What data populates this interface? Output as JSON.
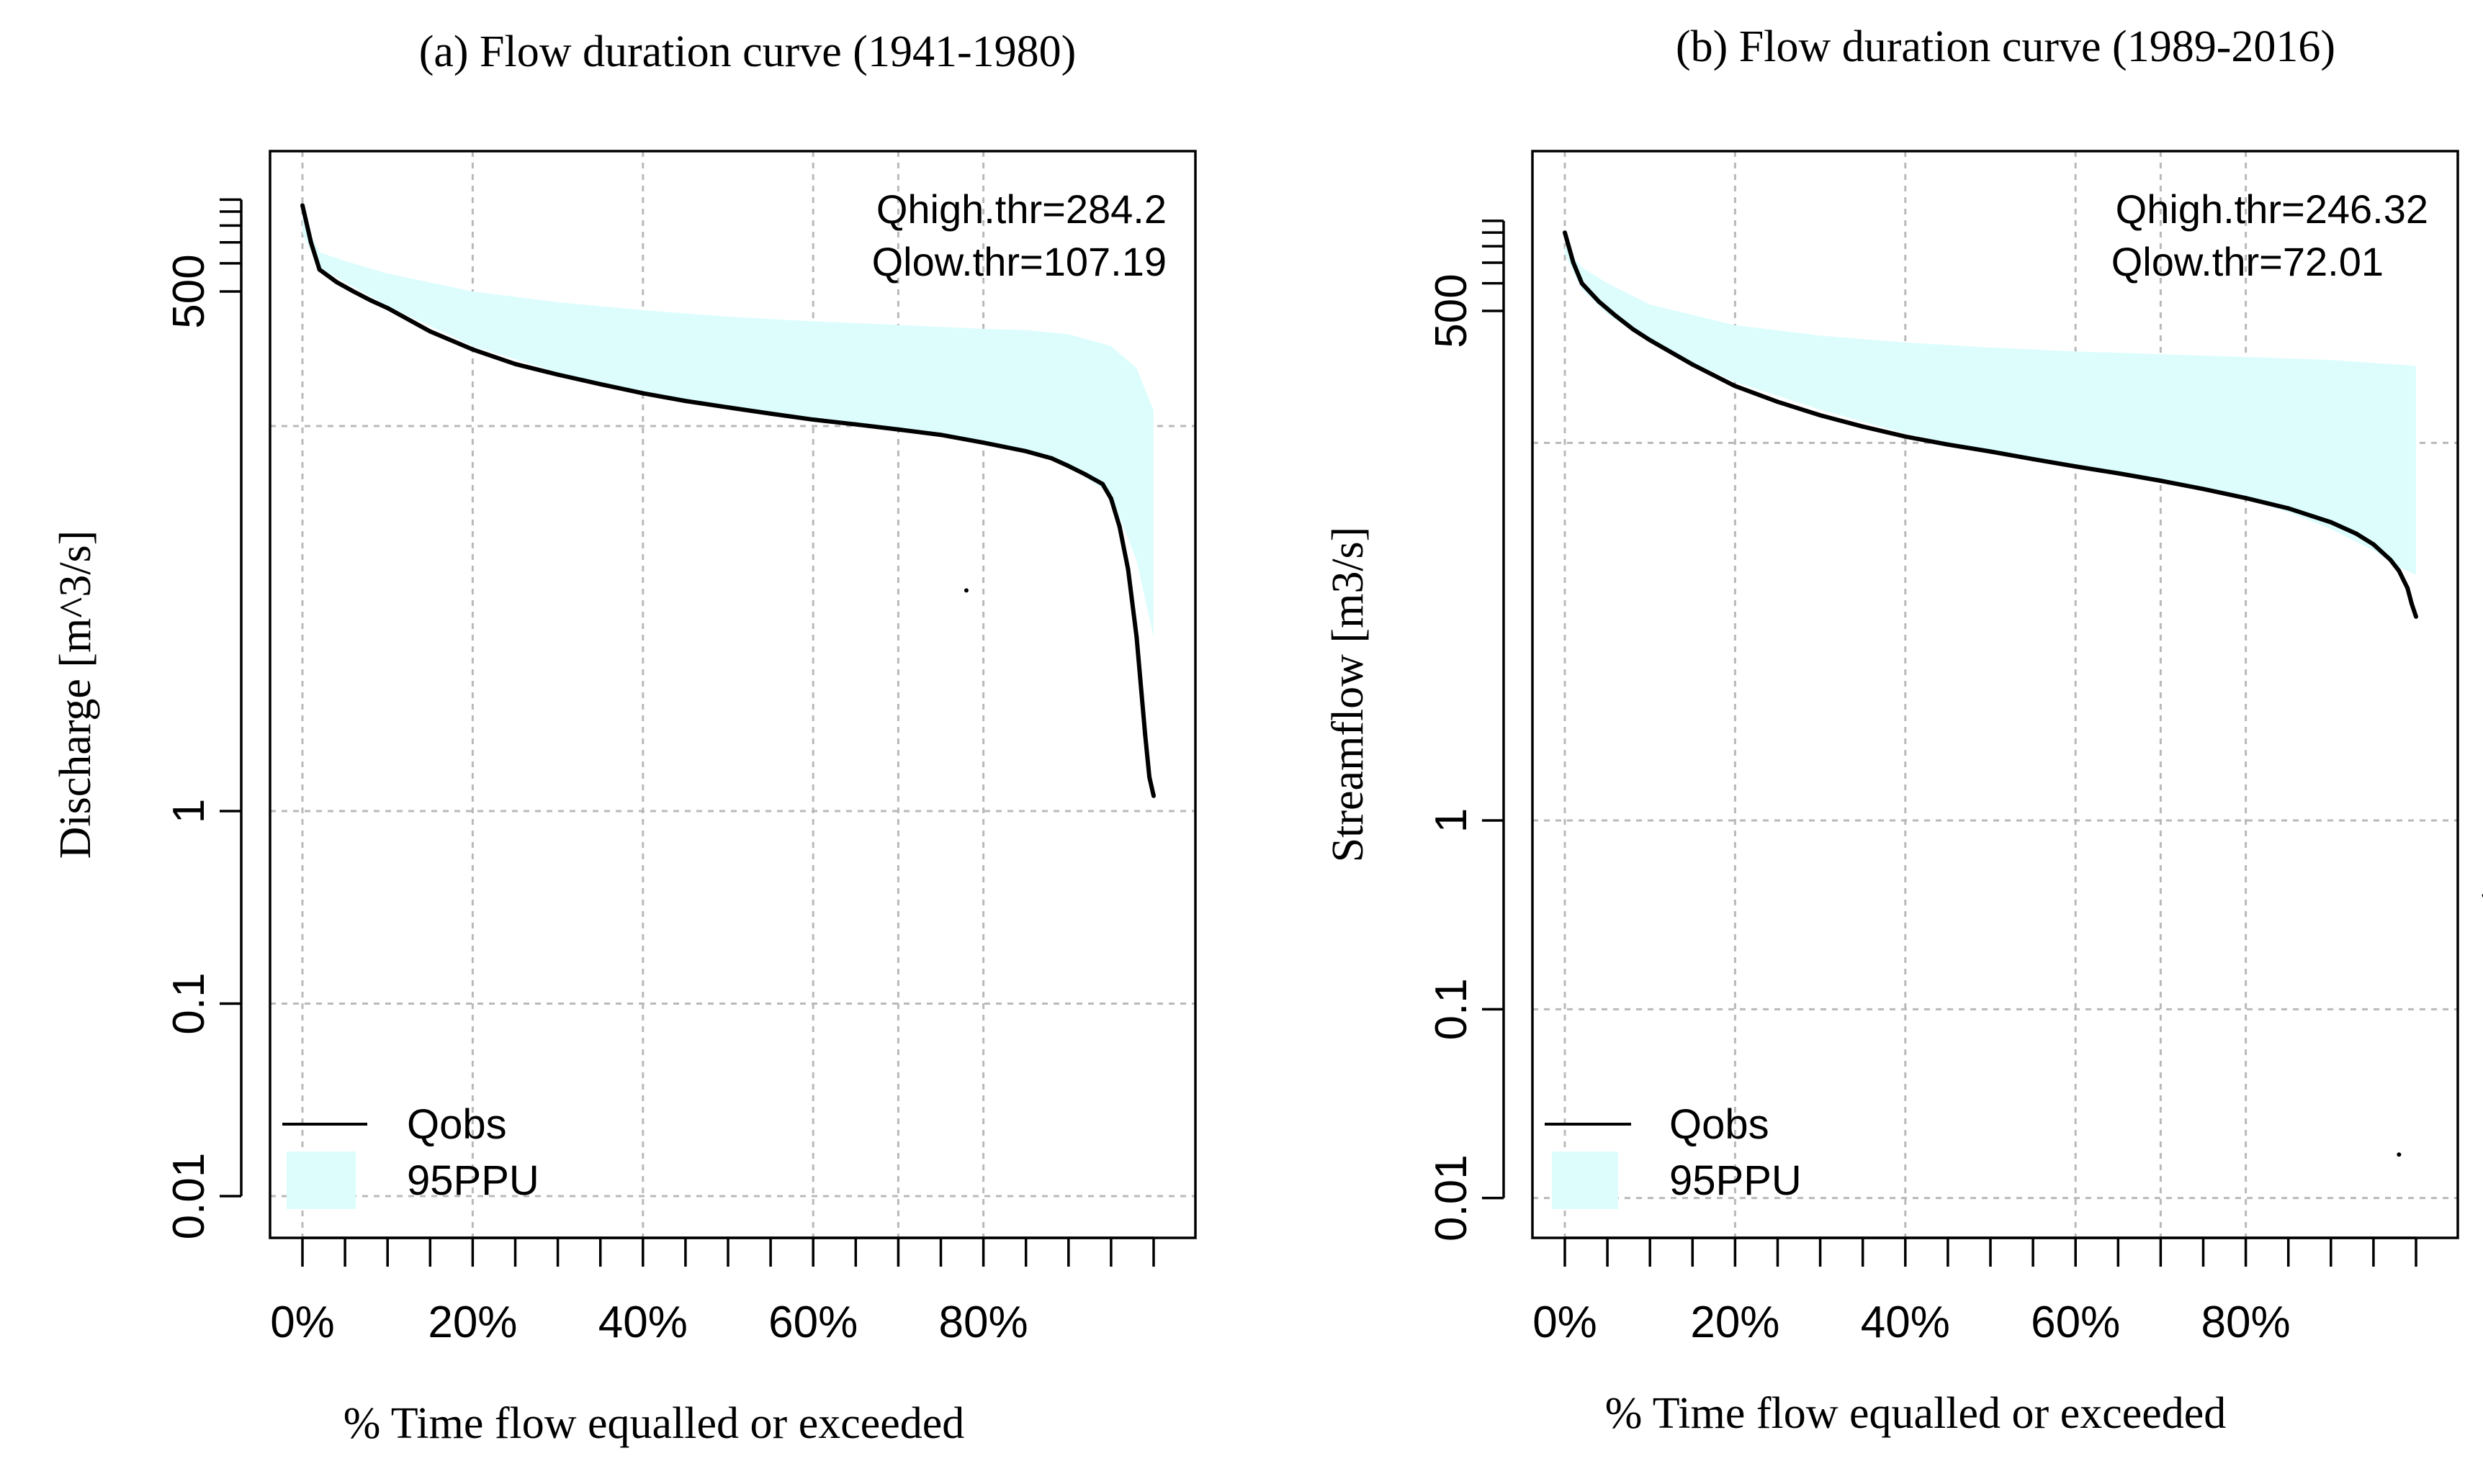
{
  "chart_data": [
    {
      "type": "line",
      "title": "(a) Flow duration curve (1941-1980)",
      "xlabel": "% Time flow equalled or exceeded",
      "ylabel": "Discharge [m^3/s]",
      "yscale": "log",
      "xlim": [
        0,
        100
      ],
      "ylim": [
        0.006,
        2000
      ],
      "x_tick_labels": [
        "0%",
        "20%",
        "40%",
        "60%",
        "80%"
      ],
      "x_tick_values": [
        0,
        20,
        40,
        60,
        80
      ],
      "y_tick_labels": [
        "0.01",
        "0.1",
        "1",
        "500"
      ],
      "y_tick_values": [
        0.01,
        0.1,
        1,
        500
      ],
      "annotations": [
        "Qhigh.thr=284.2",
        "Qlow.thr=107.19"
      ],
      "legend": [
        {
          "label": "Qobs",
          "color": "#000000",
          "kind": "line"
        },
        {
          "label": "95PPU",
          "color": "#ddfdfd",
          "kind": "fill"
        }
      ],
      "legend_position": "bottom-left",
      "series": [
        {
          "name": "Qobs",
          "x": [
            0,
            1,
            2,
            4,
            6,
            8,
            10,
            15,
            20,
            25,
            30,
            35,
            40,
            45,
            50,
            55,
            60,
            65,
            70,
            75,
            80,
            85,
            88,
            90,
            92,
            94,
            95,
            96,
            97,
            98,
            99,
            99.5,
            100
          ],
          "values": [
            1400,
            900,
            650,
            560,
            500,
            450,
            410,
            310,
            250,
            210,
            185,
            165,
            148,
            135,
            125,
            116,
            108,
            102,
            96,
            90,
            82,
            74,
            68,
            62,
            56,
            50,
            42,
            30,
            18,
            8,
            2.5,
            1.5,
            1.2
          ]
        },
        {
          "name": "95PPU",
          "x": [
            0,
            2,
            5,
            10,
            20,
            30,
            40,
            50,
            60,
            70,
            80,
            85,
            90,
            95,
            98,
            100
          ],
          "upper": [
            1200,
            800,
            720,
            620,
            500,
            440,
            400,
            370,
            350,
            335,
            320,
            315,
            300,
            260,
            200,
            120
          ],
          "lower": [
            1000,
            660,
            560,
            420,
            260,
            190,
            150,
            125,
            108,
            96,
            82,
            74,
            62,
            44,
            20,
            8
          ]
        }
      ],
      "outliers": [
        {
          "x": 78,
          "y": 14
        }
      ]
    },
    {
      "type": "line",
      "title": "(b) Flow duration curve (1989-2016)",
      "xlabel": "% Time flow equalled or exceeded",
      "ylabel": "Streamflow [m3/s]",
      "yscale": "log",
      "xlim": [
        0,
        100
      ],
      "ylim": [
        0.006,
        2000
      ],
      "x_tick_labels": [
        "0%",
        "20%",
        "40%",
        "60%",
        "80%"
      ],
      "x_tick_values": [
        0,
        20,
        40,
        60,
        80
      ],
      "y_tick_labels": [
        "0.01",
        "0.1",
        "1",
        "500"
      ],
      "y_tick_values": [
        0.01,
        0.1,
        1,
        500
      ],
      "annotations": [
        "Qhigh.thr=246.32",
        "Qlow.thr=72.01"
      ],
      "legend": [
        {
          "label": "Qobs",
          "color": "#000000",
          "kind": "line"
        },
        {
          "label": "95PPU",
          "color": "#ddfdfd",
          "kind": "fill"
        }
      ],
      "legend_position": "bottom-left",
      "series": [
        {
          "name": "Qobs",
          "x": [
            0,
            1,
            2,
            4,
            6,
            8,
            10,
            15,
            20,
            25,
            30,
            35,
            40,
            45,
            50,
            55,
            60,
            65,
            70,
            75,
            80,
            85,
            90,
            93,
            95,
            97,
            98,
            99,
            99.5,
            100
          ],
          "values": [
            1300,
            900,
            700,
            560,
            470,
            400,
            350,
            260,
            200,
            165,
            140,
            122,
            108,
            98,
            90,
            82,
            75,
            69,
            63,
            57,
            51,
            45,
            38,
            33,
            29,
            24,
            21,
            17,
            14,
            12
          ]
        },
        {
          "name": "95PPU",
          "x": [
            0,
            2,
            5,
            10,
            20,
            30,
            40,
            50,
            60,
            70,
            80,
            85,
            90,
            95,
            98,
            100
          ],
          "upper": [
            1100,
            850,
            700,
            540,
            420,
            370,
            340,
            320,
            305,
            295,
            285,
            280,
            275,
            265,
            260,
            255
          ],
          "lower": [
            1000,
            650,
            480,
            340,
            210,
            150,
            112,
            90,
            74,
            62,
            50,
            43,
            35,
            27,
            22,
            20
          ]
        }
      ],
      "outliers": [
        {
          "x": 98,
          "y": 0.017
        },
        {
          "x": 108,
          "y": 0.4
        }
      ]
    }
  ]
}
